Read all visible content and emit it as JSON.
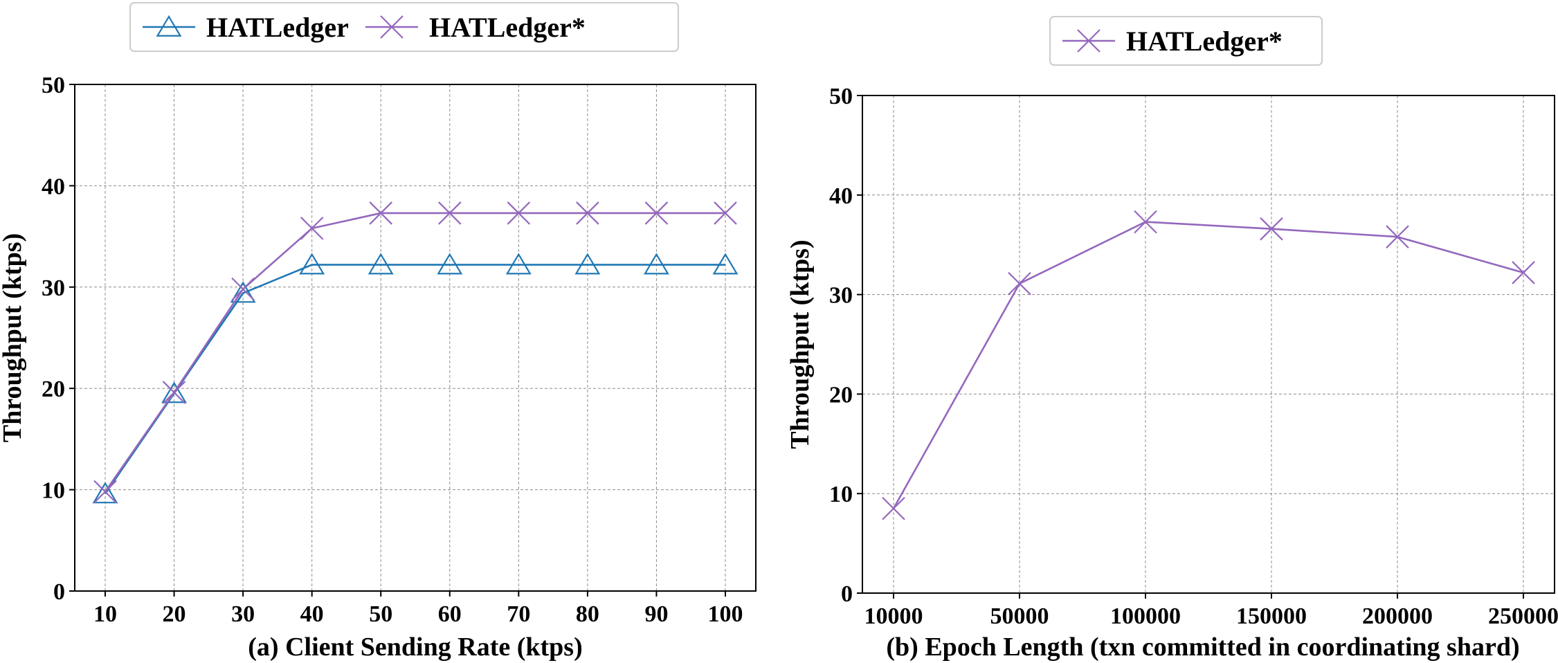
{
  "chart_data": [
    {
      "type": "line",
      "title": "",
      "xlabel": "(a) Client Sending Rate (ktps)",
      "ylabel": "Throughput (ktps)",
      "categories": [
        "10",
        "20",
        "30",
        "40",
        "50",
        "60",
        "70",
        "80",
        "90",
        "100"
      ],
      "x": [
        10,
        20,
        30,
        40,
        50,
        60,
        70,
        80,
        90,
        100
      ],
      "ylim": [
        0,
        50
      ],
      "yticks": [
        "0",
        "10",
        "20",
        "30",
        "40",
        "50"
      ],
      "grid": true,
      "legend_position": "top-center",
      "series": [
        {
          "name": "HATLedger",
          "marker": "triangle",
          "color": "#1f77b4",
          "values": [
            9.6,
            19.5,
            29.4,
            32.2,
            32.2,
            32.2,
            32.2,
            32.2,
            32.2,
            32.2
          ]
        },
        {
          "name": "HATLedger*",
          "marker": "x",
          "color": "#9467bd",
          "values": [
            9.8,
            19.6,
            29.8,
            35.8,
            37.3,
            37.3,
            37.3,
            37.3,
            37.3,
            37.3
          ]
        }
      ]
    },
    {
      "type": "line",
      "title": "",
      "xlabel": "(b) Epoch Length (txn committed in coordinating shard)",
      "ylabel": "Throughput (ktps)",
      "categories": [
        "10000",
        "50000",
        "100000",
        "150000",
        "200000",
        "250000"
      ],
      "x": [
        10000,
        50000,
        100000,
        150000,
        200000,
        250000
      ],
      "ylim": [
        0,
        50
      ],
      "yticks": [
        "0",
        "10",
        "20",
        "30",
        "40",
        "50"
      ],
      "grid": true,
      "legend_position": "top-center",
      "series": [
        {
          "name": "HATLedger*",
          "marker": "x",
          "color": "#9467bd",
          "values": [
            8.5,
            31.1,
            37.3,
            36.6,
            35.8,
            32.2
          ]
        }
      ]
    }
  ]
}
